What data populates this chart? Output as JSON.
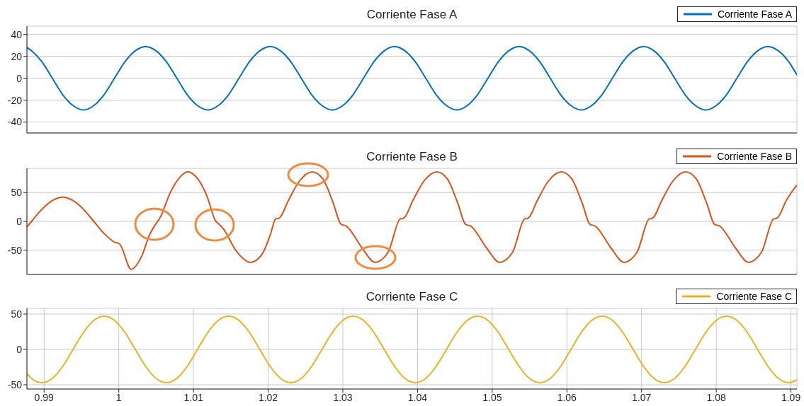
{
  "chart_data": [
    {
      "type": "line",
      "title": "Corriente Fase A",
      "x": [
        0.9877,
        0.98832,
        0.98971,
        0.9911,
        0.99249,
        0.99388,
        0.99527,
        0.99666,
        0.99804,
        0.99943,
        1.00082,
        1.00221,
        1.0036,
        1.00499,
        1.00638,
        1.00777,
        1.00916,
        1.01054,
        1.01193,
        1.01332,
        1.01471,
        1.0161,
        1.01749,
        1.01888,
        1.02027,
        1.02166,
        1.02304,
        1.02443,
        1.02582,
        1.02721,
        1.0286,
        1.02999,
        1.03138,
        1.03277,
        1.03416,
        1.03554,
        1.03693,
        1.03832,
        1.03971,
        1.0411,
        1.04249,
        1.04388,
        1.04527,
        1.04666,
        1.04804,
        1.04943,
        1.05082,
        1.05221,
        1.0536,
        1.05499,
        1.05638,
        1.05777,
        1.05916,
        1.06054,
        1.06193,
        1.06332,
        1.06471,
        1.0661,
        1.06749,
        1.06888,
        1.07027,
        1.07166,
        1.07304,
        1.07443,
        1.07582,
        1.07721,
        1.0786,
        1.07999,
        1.08138,
        1.08277,
        1.08416,
        1.08554,
        1.08693,
        1.08832,
        1.08971,
        1.0908
      ],
      "series": [
        {
          "name": "Corriente Fase A",
          "color": "#0072bd",
          "values": [
            28,
            25,
            15,
            0,
            -15,
            -25,
            -29,
            -25,
            -15,
            0,
            15,
            25,
            29,
            25,
            15,
            0,
            -15,
            -25,
            -29,
            -25,
            -15,
            0,
            15,
            25,
            29,
            25,
            15,
            0,
            -15,
            -25,
            -29,
            -25,
            -15,
            0,
            15,
            25,
            29,
            25,
            15,
            0,
            -15,
            -25,
            -29,
            -25,
            -15,
            0,
            15,
            25,
            29,
            25,
            15,
            0,
            -15,
            -25,
            -29,
            -25,
            -15,
            0,
            15,
            25,
            29,
            25,
            15,
            0,
            -15,
            -25,
            -29,
            -25,
            -15,
            0,
            15,
            25,
            29,
            25,
            15,
            3
          ]
        }
      ],
      "xlim": [
        0.9877,
        1.0908
      ],
      "ylim": [
        -50,
        47.5
      ],
      "xticks": [
        0.99,
        1,
        1.01,
        1.02,
        1.03,
        1.04,
        1.05,
        1.06,
        1.07,
        1.08,
        1.09
      ],
      "yticks": [
        -40,
        -20,
        0,
        20,
        40
      ],
      "grid": true,
      "legend": "top right",
      "tick_labels": "y"
    },
    {
      "type": "line",
      "title": "Corriente Fase B",
      "x": [
        0.9877,
        0.98832,
        0.98971,
        0.9911,
        0.99249,
        0.99388,
        0.99527,
        0.99666,
        0.99804,
        0.99943,
        1.0001,
        1.00167,
        1.00308,
        1.00413,
        1.00483,
        1.00555,
        1.00694,
        1.00835,
        1.00922,
        1.01045,
        1.01186,
        1.01291,
        1.01344,
        1.01396,
        1.01571,
        1.01765,
        1.01923,
        1.02029,
        1.02099,
        1.02151,
        1.02274,
        1.02414,
        1.0259,
        1.02731,
        1.02871,
        1.02976,
        1.03046,
        1.03257,
        1.03432,
        1.03608,
        1.03766,
        1.03818,
        1.03941,
        1.04081,
        1.04257,
        1.04398,
        1.04538,
        1.04643,
        1.04713,
        1.04924,
        1.05099,
        1.05275,
        1.05432,
        1.05484,
        1.05607,
        1.05747,
        1.05923,
        1.06064,
        1.06204,
        1.06309,
        1.06379,
        1.0659,
        1.06765,
        1.06941,
        1.07099,
        1.07151,
        1.07274,
        1.07414,
        1.0759,
        1.07731,
        1.07871,
        1.07976,
        1.08046,
        1.08257,
        1.08432,
        1.08608,
        1.08766,
        1.08818,
        1.08941,
        1.0908
      ],
      "series": [
        {
          "name": "Corriente Fase B",
          "color": "#d95319",
          "values": [
            -10,
            0,
            21,
            36,
            42,
            36,
            21,
            0,
            -21,
            -36,
            -39,
            -83,
            -60,
            -23,
            -7,
            7,
            51,
            79,
            86,
            76,
            42,
            2,
            -5,
            -12,
            -51,
            -71,
            -56,
            -23,
            4,
            6,
            37,
            69,
            86,
            74,
            32,
            -5,
            -8,
            -46,
            -71,
            -53,
            4,
            6,
            37,
            69,
            86,
            74,
            32,
            -5,
            -8,
            -46,
            -71,
            -53,
            4,
            6,
            37,
            69,
            86,
            74,
            32,
            -5,
            -8,
            -46,
            -71,
            -53,
            4,
            6,
            37,
            69,
            86,
            74,
            32,
            -5,
            -8,
            -46,
            -71,
            -53,
            4,
            6,
            37,
            63
          ]
        }
      ],
      "xlim": [
        0.9877,
        1.0908
      ],
      "ylim": [
        -92,
        92
      ],
      "xticks": [
        0.99,
        1,
        1.01,
        1.02,
        1.03,
        1.04,
        1.05,
        1.06,
        1.07,
        1.08,
        1.09
      ],
      "yticks": [
        -50,
        0,
        50
      ],
      "grid": true,
      "legend": "top right",
      "tick_labels": "y"
    },
    {
      "type": "line",
      "title": "Corriente Fase C",
      "x": [
        0.9877,
        0.98832,
        0.98971,
        0.9911,
        0.99249,
        0.99388,
        0.99527,
        0.99666,
        0.99804,
        0.99943,
        1.00082,
        1.00221,
        1.0036,
        1.00499,
        1.00638,
        1.00777,
        1.00916,
        1.01054,
        1.01193,
        1.01332,
        1.01471,
        1.0161,
        1.01749,
        1.01888,
        1.02027,
        1.02166,
        1.02304,
        1.02443,
        1.02582,
        1.02721,
        1.0286,
        1.02999,
        1.03138,
        1.03277,
        1.03416,
        1.03554,
        1.03693,
        1.03832,
        1.03971,
        1.0411,
        1.04249,
        1.04388,
        1.04527,
        1.04666,
        1.04804,
        1.04943,
        1.05082,
        1.05221,
        1.0536,
        1.05499,
        1.05638,
        1.05777,
        1.05916,
        1.06054,
        1.06193,
        1.06332,
        1.06471,
        1.0661,
        1.06749,
        1.06888,
        1.07027,
        1.07166,
        1.07304,
        1.07443,
        1.07582,
        1.07721,
        1.0786,
        1.07999,
        1.08138,
        1.08277,
        1.08416,
        1.08554,
        1.08693,
        1.08832,
        1.08971,
        1.0908
      ],
      "series": [
        {
          "name": "Corriente Fase C",
          "color": "#edb120",
          "values": [
            -34,
            -41,
            -47,
            -41,
            -24,
            0,
            24,
            41,
            47,
            41,
            24,
            0,
            -24,
            -41,
            -47,
            -41,
            -24,
            0,
            24,
            41,
            47,
            41,
            24,
            0,
            -24,
            -41,
            -47,
            -41,
            -24,
            0,
            24,
            41,
            47,
            41,
            24,
            0,
            -24,
            -41,
            -47,
            -41,
            -24,
            0,
            24,
            41,
            47,
            41,
            24,
            0,
            -24,
            -41,
            -47,
            -41,
            -24,
            0,
            24,
            41,
            47,
            41,
            24,
            0,
            -24,
            -41,
            -47,
            -41,
            -24,
            0,
            24,
            41,
            47,
            41,
            24,
            0,
            -24,
            -41,
            -47,
            -43
          ]
        }
      ],
      "xlim": [
        0.9877,
        1.0908
      ],
      "ylim": [
        -56,
        58
      ],
      "xticks": [
        0.99,
        1,
        1.01,
        1.02,
        1.03,
        1.04,
        1.05,
        1.06,
        1.07,
        1.08,
        1.09
      ],
      "yticks": [
        -50,
        0,
        50
      ],
      "grid": true,
      "legend": "top right"
    }
  ]
}
